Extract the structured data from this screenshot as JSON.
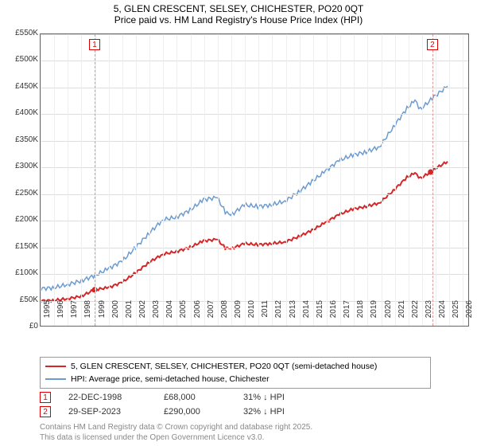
{
  "title": {
    "line1": "5, GLEN CRESCENT, SELSEY, CHICHESTER, PO20 0QT",
    "line2": "Price paid vs. HM Land Registry's House Price Index (HPI)"
  },
  "chart": {
    "type": "line",
    "xlim": [
      1995,
      2026.5
    ],
    "ylim": [
      0,
      550000
    ],
    "ytick_step": 50000,
    "yticks": [
      "£0",
      "£50K",
      "£100K",
      "£150K",
      "£200K",
      "£250K",
      "£300K",
      "£350K",
      "£400K",
      "£450K",
      "£500K",
      "£550K"
    ],
    "xticks": [
      1995,
      1996,
      1997,
      1998,
      1999,
      2000,
      2001,
      2002,
      2003,
      2004,
      2005,
      2006,
      2007,
      2008,
      2009,
      2010,
      2011,
      2012,
      2013,
      2014,
      2015,
      2016,
      2017,
      2018,
      2019,
      2020,
      2021,
      2022,
      2023,
      2024,
      2025,
      2026
    ],
    "grid_color": "#dddddd",
    "background_color": "#ffffff",
    "series": [
      {
        "name": "property",
        "label": "5, GLEN CRESCENT, SELSEY, CHICHESTER, PO20 0QT (semi-detached house)",
        "color": "#d62728",
        "line_width": 2,
        "data": [
          [
            1995,
            47000
          ],
          [
            1996,
            48000
          ],
          [
            1997,
            51000
          ],
          [
            1998,
            56000
          ],
          [
            1998.97,
            68000
          ],
          [
            2000,
            72000
          ],
          [
            2001,
            82000
          ],
          [
            2002,
            100000
          ],
          [
            2003,
            120000
          ],
          [
            2004,
            135000
          ],
          [
            2005,
            140000
          ],
          [
            2006,
            148000
          ],
          [
            2007,
            160000
          ],
          [
            2008,
            163000
          ],
          [
            2008.6,
            147000
          ],
          [
            2009,
            145000
          ],
          [
            2010,
            155000
          ],
          [
            2011,
            153000
          ],
          [
            2012,
            155000
          ],
          [
            2013,
            158000
          ],
          [
            2014,
            168000
          ],
          [
            2015,
            180000
          ],
          [
            2016,
            195000
          ],
          [
            2017,
            210000
          ],
          [
            2018,
            220000
          ],
          [
            2019,
            225000
          ],
          [
            2020,
            232000
          ],
          [
            2021,
            255000
          ],
          [
            2022,
            280000
          ],
          [
            2022.6,
            288000
          ],
          [
            2023,
            278000
          ],
          [
            2023.75,
            290000
          ],
          [
            2024,
            295000
          ],
          [
            2025,
            310000
          ]
        ]
      },
      {
        "name": "hpi",
        "label": "HPI: Average price, semi-detached house, Chichester",
        "color": "#6b9bd1",
        "line_width": 1.5,
        "data": [
          [
            1995,
            70000
          ],
          [
            1996,
            72000
          ],
          [
            1997,
            78000
          ],
          [
            1998,
            85000
          ],
          [
            1999,
            95000
          ],
          [
            2000,
            108000
          ],
          [
            2001,
            122000
          ],
          [
            2002,
            148000
          ],
          [
            2003,
            175000
          ],
          [
            2004,
            200000
          ],
          [
            2005,
            205000
          ],
          [
            2006,
            218000
          ],
          [
            2007,
            238000
          ],
          [
            2008,
            242000
          ],
          [
            2008.6,
            215000
          ],
          [
            2009,
            208000
          ],
          [
            2010,
            228000
          ],
          [
            2011,
            225000
          ],
          [
            2012,
            228000
          ],
          [
            2013,
            235000
          ],
          [
            2014,
            252000
          ],
          [
            2015,
            272000
          ],
          [
            2016,
            292000
          ],
          [
            2017,
            312000
          ],
          [
            2018,
            322000
          ],
          [
            2019,
            328000
          ],
          [
            2020,
            338000
          ],
          [
            2021,
            375000
          ],
          [
            2022,
            410000
          ],
          [
            2022.6,
            425000
          ],
          [
            2023,
            408000
          ],
          [
            2024,
            432000
          ],
          [
            2025,
            452000
          ]
        ]
      }
    ],
    "markers": [
      {
        "id": "1",
        "x": 1998.97,
        "y": 68000,
        "label_y_offset": -22
      },
      {
        "id": "2",
        "x": 2023.75,
        "y": 290000,
        "label_y_offset": -22
      }
    ],
    "sale_points": [
      {
        "x": 1998.97,
        "y": 68000
      },
      {
        "x": 2023.75,
        "y": 290000
      }
    ]
  },
  "legend": {
    "rows": [
      {
        "color": "#d62728",
        "width": 2,
        "key": "chart.series.0.label"
      },
      {
        "color": "#6b9bd1",
        "width": 1.5,
        "key": "chart.series.1.label"
      }
    ]
  },
  "marker_table": [
    {
      "id": "1",
      "date": "22-DEC-1998",
      "price": "£68,000",
      "delta": "31% ↓ HPI"
    },
    {
      "id": "2",
      "date": "29-SEP-2023",
      "price": "£290,000",
      "delta": "32% ↓ HPI"
    }
  ],
  "footer": {
    "line1": "Contains HM Land Registry data © Crown copyright and database right 2025.",
    "line2": "This data is licensed under the Open Government Licence v3.0."
  }
}
